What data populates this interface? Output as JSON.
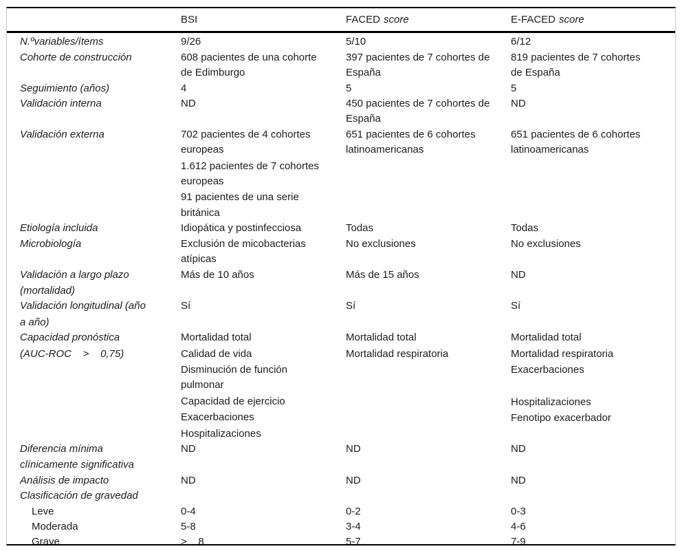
{
  "table": {
    "header": {
      "cols": [
        {
          "name": "BSI",
          "qualifier": ""
        },
        {
          "name": "FACED",
          "qualifier": "score"
        },
        {
          "name": "E-FACED",
          "qualifier": "score"
        }
      ]
    },
    "rows": [
      {
        "label_lines": [
          "N.ºvariables/ítems"
        ],
        "label_italic": true,
        "indent": false,
        "cells": [
          [
            "9/26"
          ],
          [
            "5/10"
          ],
          [
            "6/12"
          ]
        ]
      },
      {
        "label_lines": [
          "Cohorte de construcción"
        ],
        "label_italic": true,
        "indent": false,
        "cells": [
          [
            "608 pacientes de una cohorte de Edimburgo"
          ],
          [
            "397 pacientes de 7 cohortes de España"
          ],
          [
            "819 pacientes de 7 cohortes de España"
          ]
        ]
      },
      {
        "label_lines": [
          "Seguimiento (años)"
        ],
        "label_italic": true,
        "indent": false,
        "cells": [
          [
            "4"
          ],
          [
            "5"
          ],
          [
            "5"
          ]
        ]
      },
      {
        "label_lines": [
          "Validación interna"
        ],
        "label_italic": true,
        "indent": false,
        "cells": [
          [
            "ND"
          ],
          [
            "450 pacientes de 7 cohortes de España"
          ],
          [
            "ND"
          ]
        ]
      },
      {
        "label_lines": [
          "Validación externa"
        ],
        "label_italic": true,
        "indent": false,
        "cells": [
          [
            "702 pacientes de 4 cohortes europeas",
            "1.612 pacientes de 7 cohortes europeas",
            "91 pacientes de una serie británica"
          ],
          [
            "651 pacientes de 6 cohortes latinoamericanas"
          ],
          [
            "651 pacientes de 6 cohortes latinoamericanas"
          ]
        ]
      },
      {
        "label_lines": [
          "Etiología incluida"
        ],
        "label_italic": true,
        "indent": false,
        "cells": [
          [
            "Idiopática y postinfecciosa"
          ],
          [
            "Todas"
          ],
          [
            "Todas"
          ]
        ]
      },
      {
        "label_lines": [
          "Microbiología"
        ],
        "label_italic": true,
        "indent": false,
        "cells": [
          [
            "Exclusión de micobacterias atípicas"
          ],
          [
            "No exclusiones"
          ],
          [
            "No exclusiones"
          ]
        ]
      },
      {
        "label_lines": [
          "Validación a largo plazo",
          "(mortalidad)"
        ],
        "label_italic": true,
        "indent": false,
        "cells": [
          [
            "Más de 10 años"
          ],
          [
            "Más de 15 años"
          ],
          [
            "ND"
          ]
        ]
      },
      {
        "label_lines": [
          "Validación longitudinal (año",
          "a año)"
        ],
        "label_italic": true,
        "indent": false,
        "cells": [
          [
            "Sí"
          ],
          [
            "Sí"
          ],
          [
            "Sí"
          ]
        ]
      },
      {
        "label_lines": [
          "Capacidad pronóstica",
          "(AUC-ROC    >    0,75)"
        ],
        "label_italic": true,
        "indent": false,
        "cells": [
          [
            "Mortalidad total",
            "Calidad de vida",
            "Disminución de función pulmonar",
            "Capacidad de ejercicio",
            "Exacerbaciones",
            "Hospitalizaciones"
          ],
          [
            "Mortalidad total",
            "Mortalidad respiratoria"
          ],
          [
            "Mortalidad total",
            "Mortalidad respiratoria",
            "Exacerbaciones",
            "",
            "Hospitalizaciones",
            "Fenotipo exacerbador"
          ]
        ]
      },
      {
        "label_lines": [
          "Diferencia mínima",
          "clínicamente significativa"
        ],
        "label_italic": true,
        "indent": false,
        "cells": [
          [
            "ND"
          ],
          [
            "ND"
          ],
          [
            "ND"
          ]
        ]
      },
      {
        "label_lines": [
          "Análisis de impacto"
        ],
        "label_italic": true,
        "indent": false,
        "cells": [
          [
            "ND"
          ],
          [
            "ND"
          ],
          [
            "ND"
          ]
        ]
      },
      {
        "label_lines": [
          "Clasificación de gravedad"
        ],
        "label_italic": true,
        "indent": false,
        "cells": [
          [],
          [],
          []
        ]
      },
      {
        "label_lines": [
          "Leve"
        ],
        "label_italic": false,
        "indent": true,
        "cells": [
          [
            "0-4"
          ],
          [
            "0-2"
          ],
          [
            "0-3"
          ]
        ]
      },
      {
        "label_lines": [
          "Moderada"
        ],
        "label_italic": false,
        "indent": true,
        "cells": [
          [
            "5-8"
          ],
          [
            "3-4"
          ],
          [
            "4-6"
          ]
        ]
      },
      {
        "label_lines": [
          "Grave"
        ],
        "label_italic": false,
        "indent": true,
        "cells": [
          [
            ">    8"
          ],
          [
            "5-7"
          ],
          [
            "7-9"
          ]
        ]
      }
    ]
  }
}
